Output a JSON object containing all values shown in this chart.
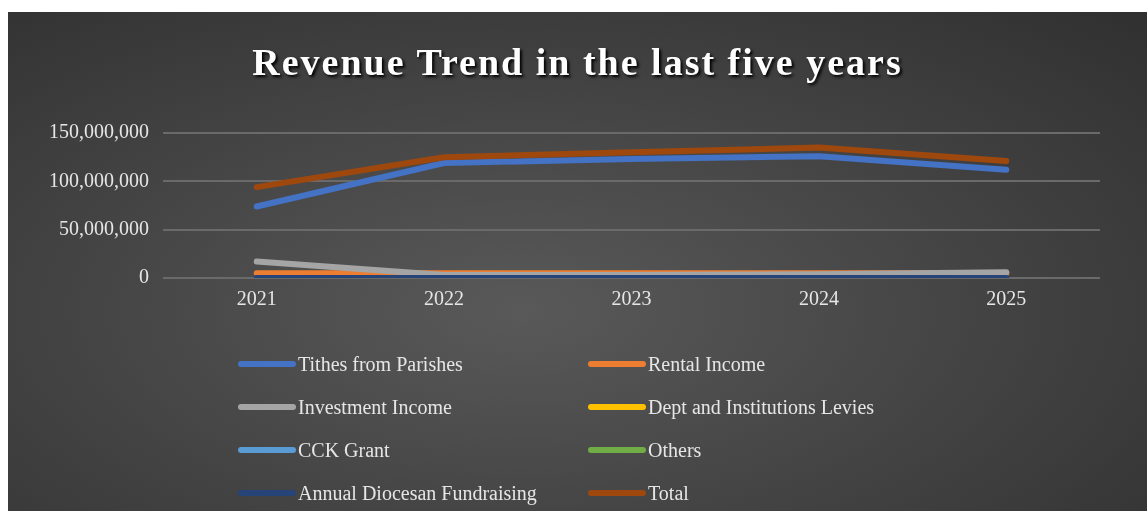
{
  "chart_data": {
    "type": "line",
    "title": "Revenue Trend in the last five years",
    "categories": [
      "2021",
      "2022",
      "2023",
      "2024",
      "2025"
    ],
    "ylim": [
      0,
      150000000
    ],
    "yticks": [
      0,
      {
        "value": 50000000,
        "label": "50,000,000"
      },
      {
        "value": 100000000,
        "label": "100,000,000"
      },
      {
        "value": 150000000,
        "label": "150,000,000"
      }
    ],
    "grid": "y",
    "legend": "bottom",
    "marker": "none",
    "line_style": "solid",
    "series": [
      {
        "name": "Tithes from Parishes",
        "color": "#4472c4",
        "values": [
          74000000,
          119000000,
          123000000,
          126000000,
          112000000
        ]
      },
      {
        "name": "Rental Income",
        "color": "#ed7d31",
        "values": [
          5000000,
          5000000,
          5000000,
          5000000,
          5000000
        ]
      },
      {
        "name": "Investment Income",
        "color": "#a5a5a5",
        "values": [
          17000000,
          3000000,
          3000000,
          4000000,
          6000000
        ]
      },
      {
        "name": "Dept and Institutions Levies",
        "color": "#ffc000",
        "values": [
          null,
          null,
          null,
          null,
          null
        ]
      },
      {
        "name": "CCK Grant",
        "color": "#5b9bd5",
        "values": [
          null,
          null,
          null,
          null,
          null
        ]
      },
      {
        "name": "Others",
        "color": "#70ad47",
        "values": [
          null,
          null,
          null,
          null,
          null
        ]
      },
      {
        "name": "Annual Diocesan Fundraising",
        "color": "#264478",
        "values": [
          0,
          0,
          0,
          0,
          0
        ]
      },
      {
        "name": "Total",
        "color": "#9e480e",
        "values": [
          94000000,
          125000000,
          130000000,
          135000000,
          121000000
        ]
      }
    ]
  }
}
